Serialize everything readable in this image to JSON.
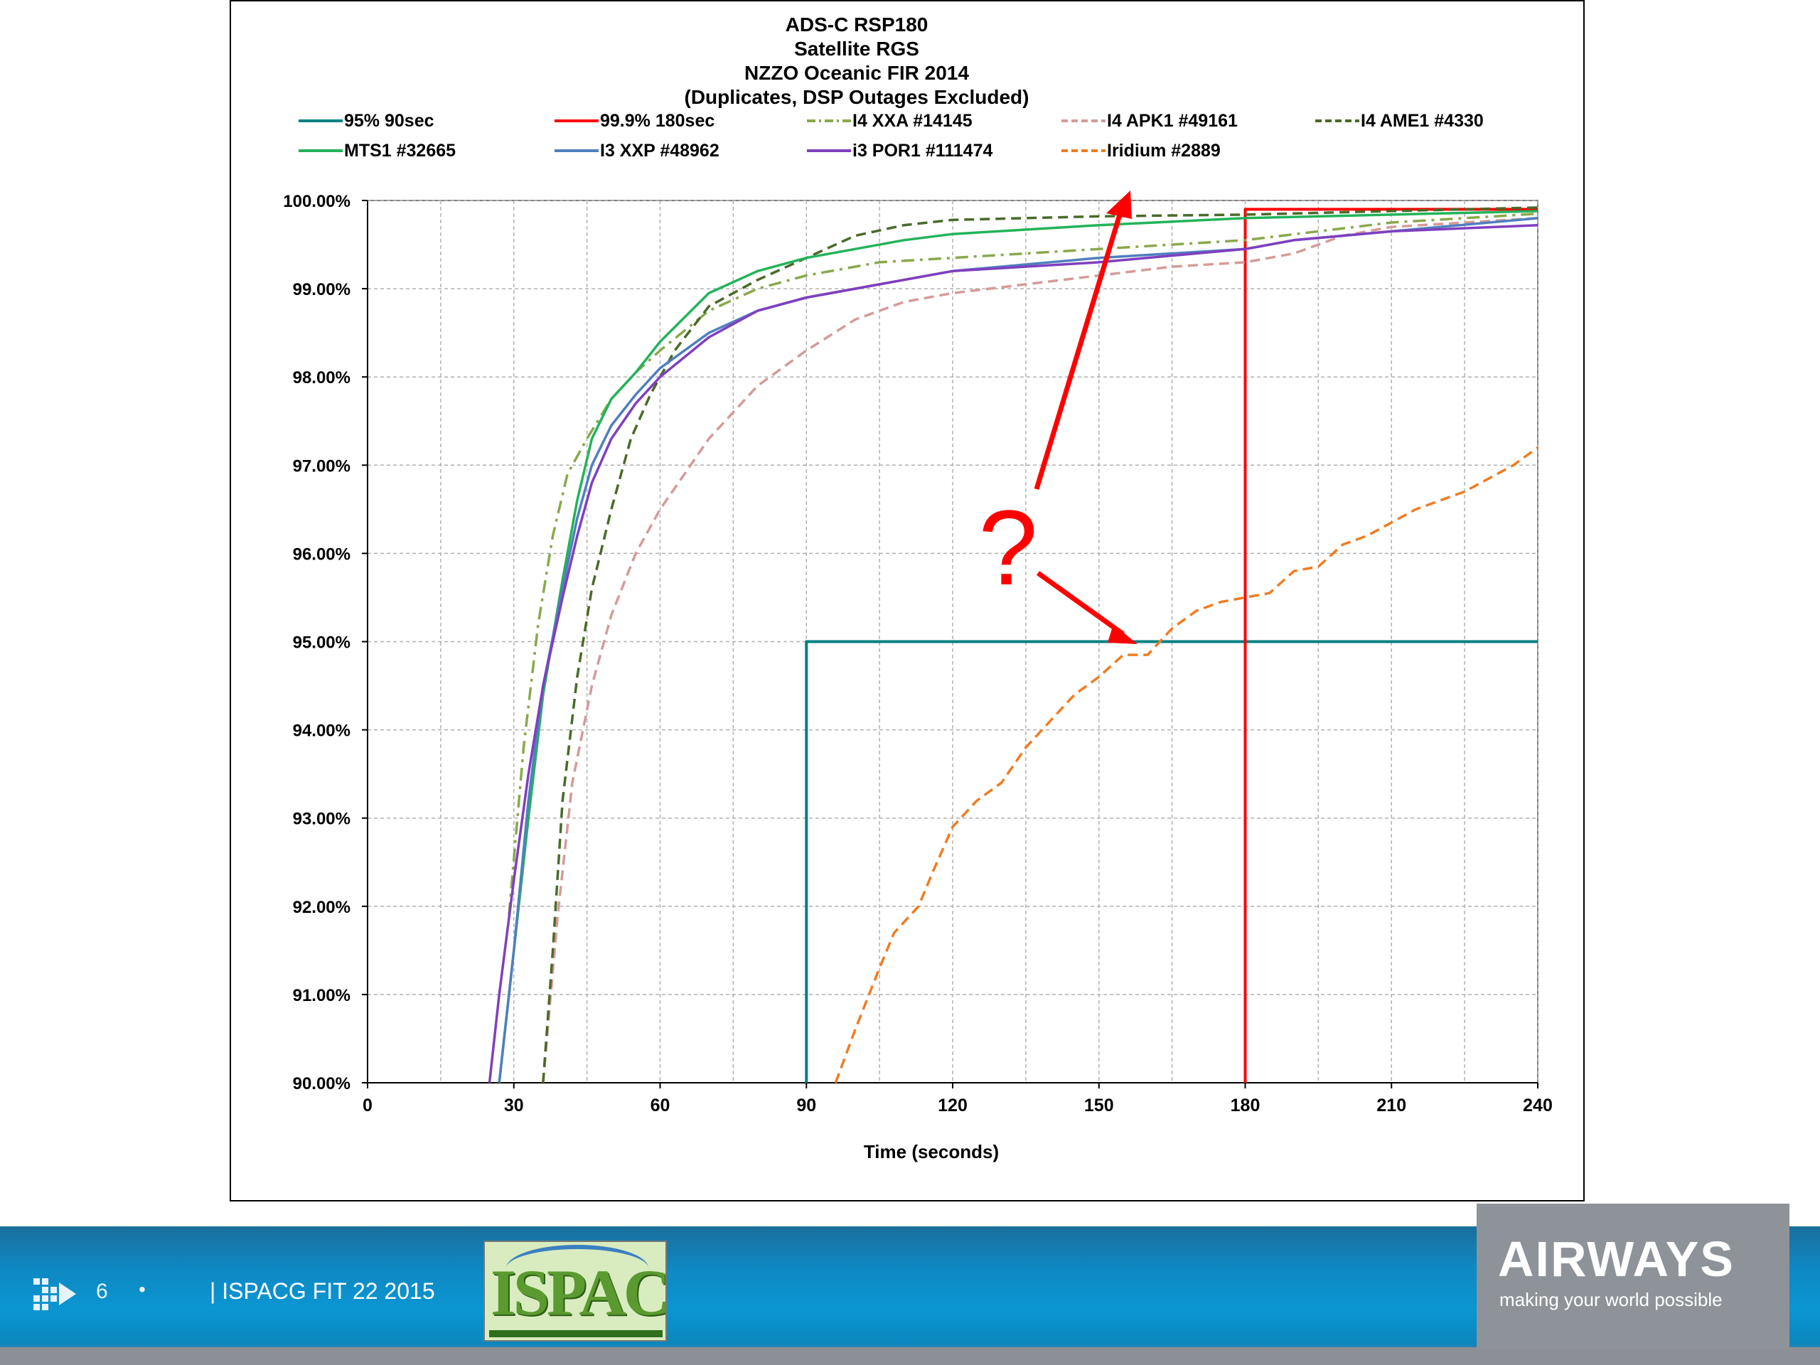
{
  "chart_data": {
    "type": "line",
    "title": [
      "ADS-C RSP180",
      "Satellite RGS",
      "NZZO Oceanic FIR 2014",
      "(Duplicates, DSP Outages Excluded)"
    ],
    "xlabel": "Time (seconds)",
    "ylabel": "",
    "xlim": [
      0,
      240
    ],
    "ylim": [
      90,
      100
    ],
    "xticks": [
      0,
      30,
      60,
      90,
      120,
      150,
      180,
      210,
      240
    ],
    "yticks": [
      "90.00%",
      "91.00%",
      "92.00%",
      "93.00%",
      "94.00%",
      "95.00%",
      "96.00%",
      "97.00%",
      "98.00%",
      "99.00%",
      "100.00%"
    ],
    "grid": true,
    "legend_position": "top",
    "series": [
      {
        "name": "95% 90sec",
        "color": "#008080",
        "dash": "solid",
        "points": [
          [
            90,
            90
          ],
          [
            90,
            95
          ],
          [
            240,
            95
          ]
        ]
      },
      {
        "name": "99.9% 180sec",
        "color": "#ff0000",
        "dash": "solid",
        "points": [
          [
            180,
            90
          ],
          [
            180,
            99.9
          ],
          [
            240,
            99.9
          ]
        ]
      },
      {
        "name": "I4 XXA #14145",
        "color": "#8aa84c",
        "dash": "dashdot",
        "points": [
          [
            29,
            91.9
          ],
          [
            32,
            93.8
          ],
          [
            35,
            95.2
          ],
          [
            38,
            96.2
          ],
          [
            41,
            96.9
          ],
          [
            45,
            97.3
          ],
          [
            50,
            97.75
          ],
          [
            55,
            98.05
          ],
          [
            60,
            98.3
          ],
          [
            70,
            98.75
          ],
          [
            80,
            99.0
          ],
          [
            90,
            99.15
          ],
          [
            105,
            99.3
          ],
          [
            120,
            99.35
          ],
          [
            150,
            99.45
          ],
          [
            180,
            99.55
          ],
          [
            210,
            99.75
          ],
          [
            240,
            99.85
          ]
        ]
      },
      {
        "name": "I4 APK1 #49161",
        "color": "#d69a9a",
        "dash": "dash",
        "points": [
          [
            36,
            90
          ],
          [
            39,
            91.9
          ],
          [
            42,
            93.4
          ],
          [
            46,
            94.5
          ],
          [
            50,
            95.3
          ],
          [
            55,
            96.0
          ],
          [
            60,
            96.5
          ],
          [
            70,
            97.3
          ],
          [
            80,
            97.9
          ],
          [
            90,
            98.3
          ],
          [
            100,
            98.65
          ],
          [
            110,
            98.85
          ],
          [
            120,
            98.95
          ],
          [
            135,
            99.05
          ],
          [
            150,
            99.15
          ],
          [
            165,
            99.25
          ],
          [
            180,
            99.3
          ],
          [
            190,
            99.4
          ],
          [
            200,
            99.6
          ],
          [
            210,
            99.7
          ],
          [
            240,
            99.8
          ]
        ]
      },
      {
        "name": "I4 AME1 #4330",
        "color": "#4a6a28",
        "dash": "dash",
        "points": [
          [
            36,
            90
          ],
          [
            38,
            91.5
          ],
          [
            40,
            93.2
          ],
          [
            43,
            94.6
          ],
          [
            46,
            95.6
          ],
          [
            50,
            96.5
          ],
          [
            54,
            97.3
          ],
          [
            58,
            97.8
          ],
          [
            63,
            98.3
          ],
          [
            70,
            98.8
          ],
          [
            80,
            99.1
          ],
          [
            90,
            99.35
          ],
          [
            100,
            99.6
          ],
          [
            110,
            99.72
          ],
          [
            120,
            99.78
          ],
          [
            150,
            99.82
          ],
          [
            180,
            99.84
          ],
          [
            210,
            99.88
          ],
          [
            240,
            99.92
          ]
        ]
      },
      {
        "name": "MTS1 #32665",
        "color": "#22b35a",
        "dash": "solid",
        "points": [
          [
            27,
            90
          ],
          [
            30,
            91.5
          ],
          [
            33,
            93.0
          ],
          [
            36,
            94.4
          ],
          [
            40,
            95.7
          ],
          [
            43,
            96.6
          ],
          [
            46,
            97.3
          ],
          [
            50,
            97.75
          ],
          [
            55,
            98.05
          ],
          [
            60,
            98.4
          ],
          [
            70,
            98.95
          ],
          [
            80,
            99.2
          ],
          [
            90,
            99.35
          ],
          [
            100,
            99.45
          ],
          [
            110,
            99.55
          ],
          [
            120,
            99.62
          ],
          [
            150,
            99.72
          ],
          [
            180,
            99.8
          ],
          [
            210,
            99.84
          ],
          [
            240,
            99.88
          ]
        ]
      },
      {
        "name": "I3 XXP #48962",
        "color": "#4f7fbe",
        "dash": "solid",
        "points": [
          [
            27,
            90
          ],
          [
            30,
            91.5
          ],
          [
            33,
            93.2
          ],
          [
            36,
            94.5
          ],
          [
            40,
            95.6
          ],
          [
            43,
            96.4
          ],
          [
            46,
            97.0
          ],
          [
            50,
            97.45
          ],
          [
            55,
            97.8
          ],
          [
            60,
            98.1
          ],
          [
            70,
            98.5
          ],
          [
            80,
            98.75
          ],
          [
            90,
            98.9
          ],
          [
            100,
            99.0
          ],
          [
            110,
            99.1
          ],
          [
            120,
            99.2
          ],
          [
            150,
            99.35
          ],
          [
            180,
            99.45
          ],
          [
            190,
            99.55
          ],
          [
            210,
            99.65
          ],
          [
            240,
            99.8
          ]
        ]
      },
      {
        "name": "i3 POR1 #111474",
        "color": "#7f3fbf",
        "dash": "solid",
        "points": [
          [
            25,
            90
          ],
          [
            27,
            91.0
          ],
          [
            30,
            92.3
          ],
          [
            33,
            93.5
          ],
          [
            36,
            94.5
          ],
          [
            40,
            95.5
          ],
          [
            43,
            96.2
          ],
          [
            46,
            96.8
          ],
          [
            50,
            97.3
          ],
          [
            55,
            97.7
          ],
          [
            60,
            98.0
          ],
          [
            70,
            98.45
          ],
          [
            80,
            98.75
          ],
          [
            90,
            98.9
          ],
          [
            100,
            99.0
          ],
          [
            110,
            99.1
          ],
          [
            120,
            99.2
          ],
          [
            150,
            99.3
          ],
          [
            180,
            99.45
          ],
          [
            190,
            99.55
          ],
          [
            210,
            99.65
          ],
          [
            240,
            99.72
          ]
        ]
      },
      {
        "name": "Iridium #2889",
        "color": "#f07c22",
        "dash": "dash",
        "points": [
          [
            96,
            90
          ],
          [
            100,
            90.6
          ],
          [
            105,
            91.3
          ],
          [
            108,
            91.7
          ],
          [
            113,
            92.0
          ],
          [
            116,
            92.4
          ],
          [
            120,
            92.9
          ],
          [
            125,
            93.2
          ],
          [
            130,
            93.4
          ],
          [
            135,
            93.8
          ],
          [
            140,
            94.1
          ],
          [
            145,
            94.4
          ],
          [
            150,
            94.6
          ],
          [
            155,
            94.85
          ],
          [
            160,
            94.85
          ],
          [
            165,
            95.15
          ],
          [
            170,
            95.35
          ],
          [
            175,
            95.45
          ],
          [
            180,
            95.5
          ],
          [
            185,
            95.55
          ],
          [
            190,
            95.8
          ],
          [
            195,
            95.85
          ],
          [
            200,
            96.1
          ],
          [
            205,
            96.2
          ],
          [
            210,
            96.35
          ],
          [
            215,
            96.5
          ],
          [
            220,
            96.6
          ],
          [
            225,
            96.7
          ],
          [
            230,
            96.85
          ],
          [
            235,
            97.0
          ],
          [
            240,
            97.2
          ]
        ]
      }
    ],
    "annotation": {
      "text": "?",
      "color": "#ff0000"
    }
  },
  "footer": {
    "slide_number": "6",
    "bullet": "•",
    "event_text": "| ISPACG FIT 22 2015",
    "logo_text": "ISPACG",
    "brand_name": "AIRWAYS",
    "brand_tagline": "making your world possible"
  }
}
